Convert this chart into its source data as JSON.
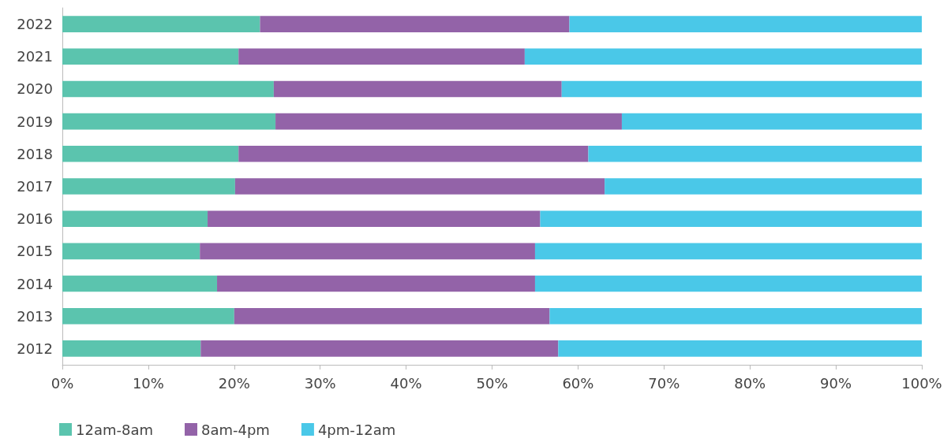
{
  "chart_data": {
    "type": "bar",
    "orientation": "horizontal",
    "stacked": true,
    "categories": [
      "2022",
      "2021",
      "2020",
      "2019",
      "2018",
      "2017",
      "2016",
      "2015",
      "2014",
      "2013",
      "2012"
    ],
    "series": [
      {
        "name": "12am-8am",
        "color": "#5bc4ae",
        "values": [
          23,
          20.5,
          24.6,
          24.8,
          20.5,
          20.1,
          16.9,
          16,
          18,
          20,
          16.1
        ]
      },
      {
        "name": "8am-4pm",
        "color": "#9363a8",
        "values": [
          36,
          33.3,
          33.5,
          40.3,
          40.7,
          43,
          38.7,
          39,
          37,
          36.7,
          41.6
        ]
      },
      {
        "name": "4pm-12am",
        "color": "#4ac8e8",
        "values": [
          41,
          46.2,
          41.9,
          34.9,
          38.8,
          36.9,
          44.4,
          45,
          45,
          43.3,
          42.3
        ]
      }
    ],
    "xlim": [
      0,
      100
    ],
    "xticks": [
      {
        "value": 0,
        "label": "0%"
      },
      {
        "value": 10,
        "label": "10%"
      },
      {
        "value": 20,
        "label": "20%"
      },
      {
        "value": 30,
        "label": "30%"
      },
      {
        "value": 40,
        "label": "40%"
      },
      {
        "value": 50,
        "label": "50%"
      },
      {
        "value": 60,
        "label": "60%"
      },
      {
        "value": 70,
        "label": "70%"
      },
      {
        "value": 80,
        "label": "80%"
      },
      {
        "value": 90,
        "label": "90%"
      },
      {
        "value": 100,
        "label": "100%"
      }
    ],
    "legend": "bottom left",
    "grid": false
  }
}
